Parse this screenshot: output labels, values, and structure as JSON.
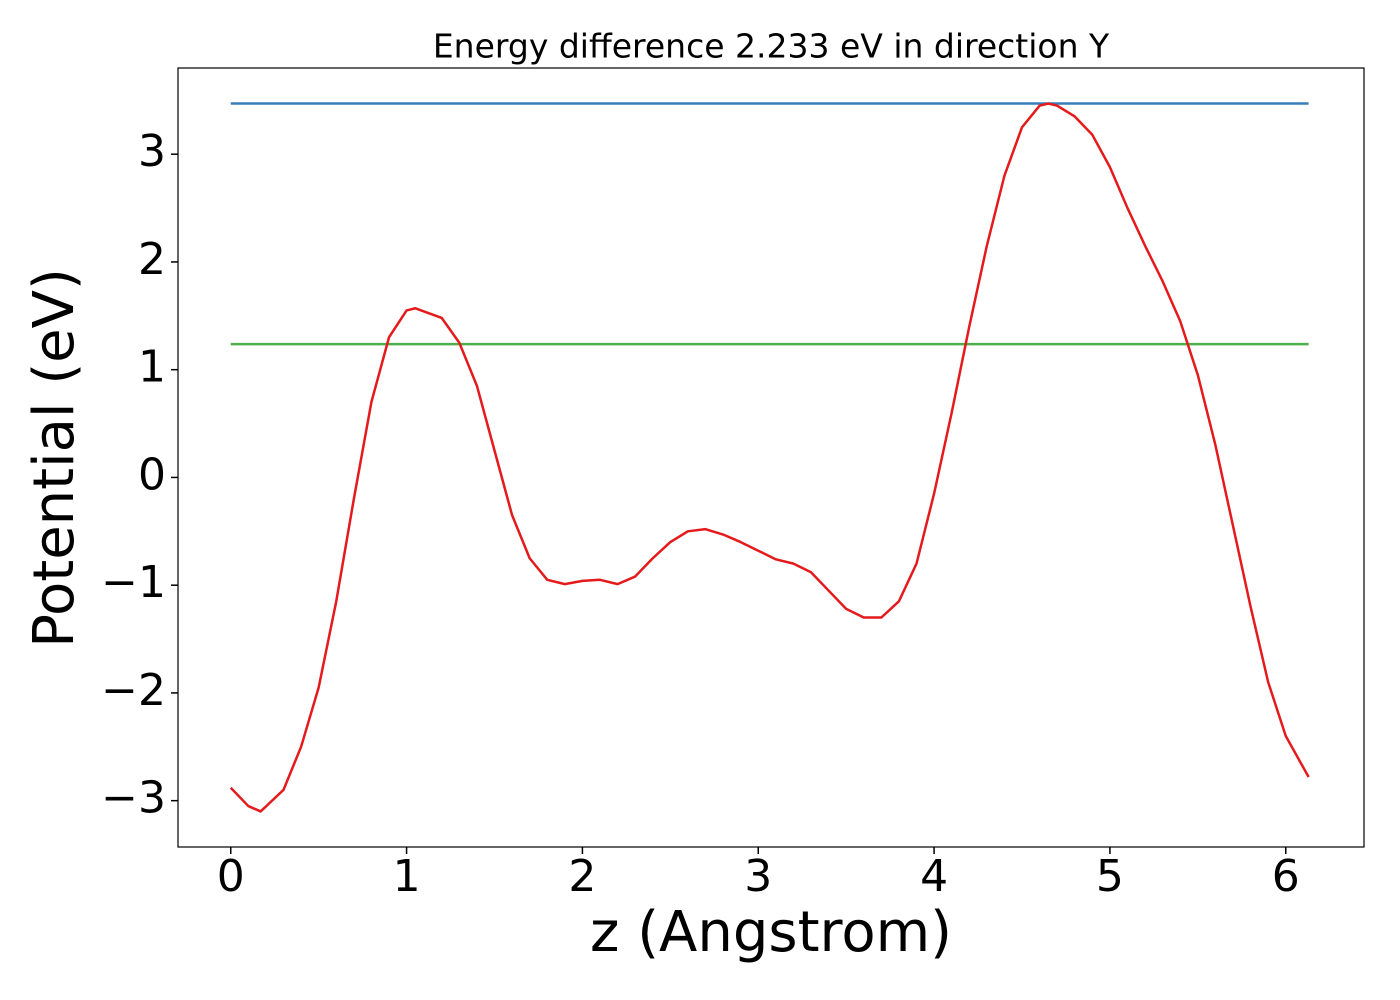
{
  "chart_data": {
    "type": "line",
    "title": "Energy difference 2.233 eV in direction Y",
    "xlabel": "z (Angstrom)",
    "ylabel": "Potential (eV)",
    "xlim": [
      -0.3,
      6.445
    ],
    "ylim": [
      -3.43,
      3.8
    ],
    "xticks": [
      0,
      1,
      2,
      3,
      4,
      5,
      6
    ],
    "yticks": [
      {
        "value": -3,
        "label": "−3"
      },
      {
        "value": -2,
        "label": "−2"
      },
      {
        "value": -1,
        "label": "−1"
      },
      0,
      1,
      2,
      3
    ],
    "series": [
      {
        "color": "#377eb8",
        "x": [
          0,
          6.13
        ],
        "values": [
          3.47,
          3.47
        ]
      },
      {
        "color": "#4daf4a",
        "x": [
          0,
          6.13
        ],
        "values": [
          1.237,
          1.237
        ]
      },
      {
        "color": "#e41a1c",
        "x": [
          0,
          0.1,
          0.17,
          0.3,
          0.4,
          0.5,
          0.6,
          0.7,
          0.8,
          0.9,
          1.0,
          1.05,
          1.2,
          1.3,
          1.4,
          1.5,
          1.6,
          1.7,
          1.8,
          1.9,
          2.0,
          2.1,
          2.2,
          2.3,
          2.4,
          2.5,
          2.6,
          2.7,
          2.8,
          2.9,
          3.0,
          3.1,
          3.2,
          3.3,
          3.4,
          3.5,
          3.6,
          3.7,
          3.8,
          3.9,
          4.0,
          4.1,
          4.2,
          4.3,
          4.4,
          4.5,
          4.6,
          4.65,
          4.7,
          4.8,
          4.9,
          5.0,
          5.1,
          5.2,
          5.3,
          5.4,
          5.5,
          5.6,
          5.7,
          5.8,
          5.9,
          6.0,
          6.13
        ],
        "values": [
          -2.88,
          -3.05,
          -3.1,
          -2.9,
          -2.5,
          -1.95,
          -1.15,
          -0.2,
          0.7,
          1.3,
          1.55,
          1.57,
          1.48,
          1.25,
          0.85,
          0.25,
          -0.35,
          -0.75,
          -0.95,
          -0.99,
          -0.96,
          -0.95,
          -0.99,
          -0.92,
          -0.75,
          -0.6,
          -0.5,
          -0.48,
          -0.53,
          -0.6,
          -0.68,
          -0.76,
          -0.8,
          -0.88,
          -1.05,
          -1.22,
          -1.3,
          -1.3,
          -1.15,
          -0.8,
          -0.15,
          0.6,
          1.4,
          2.15,
          2.8,
          3.25,
          3.45,
          3.47,
          3.45,
          3.35,
          3.18,
          2.88,
          2.5,
          2.15,
          1.82,
          1.45,
          0.95,
          0.3,
          -0.45,
          -1.2,
          -1.9,
          -2.4,
          -2.78
        ]
      }
    ]
  }
}
